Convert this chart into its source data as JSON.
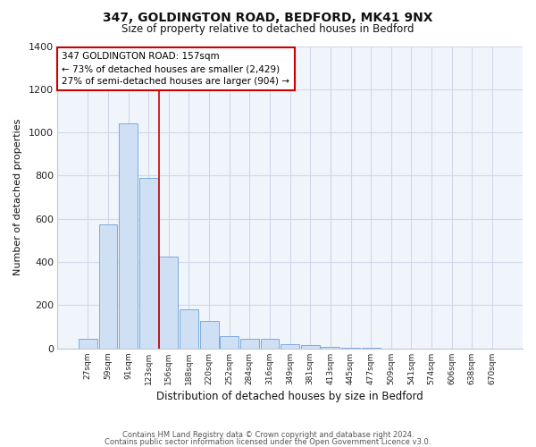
{
  "title": "347, GOLDINGTON ROAD, BEDFORD, MK41 9NX",
  "subtitle": "Size of property relative to detached houses in Bedford",
  "xlabel": "Distribution of detached houses by size in Bedford",
  "ylabel": "Number of detached properties",
  "bar_labels": [
    "27sqm",
    "59sqm",
    "91sqm",
    "123sqm",
    "156sqm",
    "188sqm",
    "220sqm",
    "252sqm",
    "284sqm",
    "316sqm",
    "349sqm",
    "381sqm",
    "413sqm",
    "445sqm",
    "477sqm",
    "509sqm",
    "541sqm",
    "574sqm",
    "606sqm",
    "638sqm",
    "670sqm"
  ],
  "bar_values": [
    45,
    575,
    1040,
    790,
    425,
    180,
    125,
    55,
    45,
    45,
    20,
    15,
    8,
    4,
    3,
    0,
    0,
    0,
    0,
    0,
    0
  ],
  "bar_color": "#cfe0f5",
  "bar_edge_color": "#7aabdb",
  "ylim": [
    0,
    1400
  ],
  "yticks": [
    0,
    200,
    400,
    600,
    800,
    1000,
    1200,
    1400
  ],
  "property_line_idx": 4,
  "property_line_color": "#cc0000",
  "annotation_line1": "347 GOLDINGTON ROAD: 157sqm",
  "annotation_line2": "← 73% of detached houses are smaller (2,429)",
  "annotation_line3": "27% of semi-detached houses are larger (904) →",
  "annotation_box_facecolor": "#ffffff",
  "annotation_box_edgecolor": "#cc0000",
  "footer_line1": "Contains HM Land Registry data © Crown copyright and database right 2024.",
  "footer_line2": "Contains public sector information licensed under the Open Government Licence v3.0.",
  "fig_facecolor": "#ffffff",
  "plot_facecolor": "#f0f4fb",
  "grid_color": "#d0d8e8",
  "spine_color": "#c0c8d8"
}
